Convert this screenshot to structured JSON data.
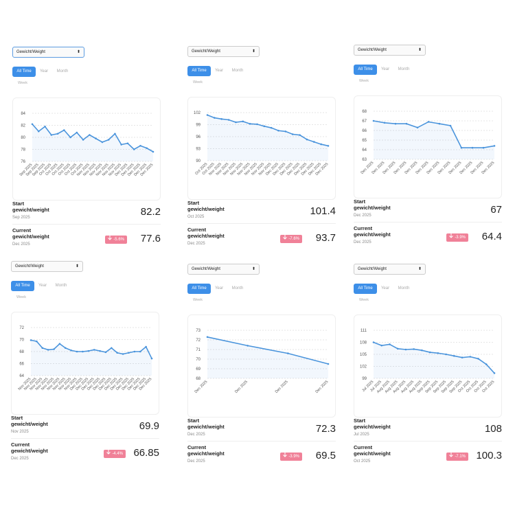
{
  "cards": [
    {
      "select": "Gewicht/Weight",
      "tabs": [
        "All Time",
        "Year",
        "Month",
        "Week"
      ],
      "chart": {
        "type": "line",
        "categories": [
          "Sep 2025",
          "Sep 2025",
          "Sep 2025",
          "Oct 2025",
          "Oct 2025",
          "Oct 2025",
          "Oct 2025",
          "Oct 2025",
          "Oct 2025",
          "Nov 2025",
          "Nov 2025",
          "Nov 2025",
          "Nov 2025",
          "Nov 2025",
          "Nov 2025",
          "Dec 2025",
          "Dec 2025",
          "Dec 2025",
          "Dec 2025",
          "Dec 2025"
        ],
        "values": [
          82.2,
          81.0,
          81.8,
          80.4,
          80.6,
          81.2,
          80.0,
          80.8,
          79.6,
          80.4,
          79.8,
          79.2,
          79.6,
          80.6,
          78.8,
          79.0,
          78.0,
          78.6,
          78.2,
          77.6
        ],
        "color": "#4a94dc",
        "ylim": [
          76,
          84
        ],
        "yticks": [
          76,
          78,
          80,
          82,
          84
        ],
        "grid": true
      },
      "start": {
        "label": "Start",
        "metric": "gewicht/weight",
        "date": "Sep 2025",
        "value": "82.2"
      },
      "current": {
        "label": "Current",
        "metric": "gewicht/weight",
        "date": "Dec 2025",
        "change": "-5.6%",
        "value": "77.6"
      }
    },
    {
      "select": "Gewicht/Weight",
      "tabs": [
        "All Time",
        "Year",
        "Month",
        "Week"
      ],
      "chart": {
        "type": "line",
        "categories": [
          "Oct 2025",
          "Oct 2025",
          "Nov 2025",
          "Nov 2025",
          "Nov 2025",
          "Nov 2025",
          "Nov 2025",
          "Nov 2025",
          "Nov 2025",
          "Nov 2025",
          "Dec 2025",
          "Dec 2025",
          "Dec 2025",
          "Dec 2025",
          "Dec 2025",
          "Dec 2025",
          "Dec 2025",
          "Dec 2025"
        ],
        "values": [
          101.4,
          100.7,
          100.4,
          100.2,
          99.6,
          99.8,
          99.2,
          99.1,
          98.6,
          98.2,
          97.5,
          97.3,
          96.6,
          96.4,
          95.3,
          94.7,
          94.1,
          93.7
        ],
        "color": "#4a94dc",
        "ylim": [
          90,
          102
        ],
        "yticks": [
          90,
          93,
          96,
          99,
          102
        ],
        "grid": true
      },
      "start": {
        "label": "Start",
        "metric": "gewicht/weight",
        "date": "Oct 2025",
        "value": "101.4"
      },
      "current": {
        "label": "Current",
        "metric": "gewicht/weight",
        "date": "Dec 2025",
        "change": "-7.6%",
        "value": "93.7"
      }
    },
    {
      "select": "Gewicht/Weight",
      "tabs": [
        "All Time",
        "Year",
        "Month",
        "Week"
      ],
      "chart": {
        "type": "line",
        "categories": [
          "Dec 2025",
          "Dec 2025",
          "Dec 2025",
          "Dec 2025",
          "Dec 2025",
          "Dec 2025",
          "Dec 2025",
          "Dec 2025",
          "Dec 2025",
          "Dec 2025",
          "Dec 2025",
          "Dec 2025"
        ],
        "values": [
          67,
          66.8,
          66.7,
          66.7,
          66.3,
          66.9,
          66.7,
          66.5,
          64.2,
          64.2,
          64.2,
          64.4
        ],
        "color": "#4a94dc",
        "ylim": [
          63,
          68
        ],
        "yticks": [
          63,
          64,
          65,
          66,
          67,
          68
        ],
        "grid": true
      },
      "start": {
        "label": "Start",
        "metric": "gewicht/weight",
        "date": "Dec 2025",
        "value": "67"
      },
      "current": {
        "label": "Current",
        "metric": "gewicht/weight",
        "date": "Dec 2025",
        "change": "-3.9%",
        "value": "64.4"
      }
    },
    {
      "select": "Gewicht/Weight",
      "tabs": [
        "All Time",
        "Year",
        "Month",
        "Week"
      ],
      "chart": {
        "type": "line",
        "categories": [
          "Nov 2025",
          "Nov 2025",
          "Nov 2025",
          "Nov 2025",
          "Nov 2025",
          "Nov 2025",
          "Nov 2025",
          "Nov 2025",
          "Nov 2025",
          "Dec 2025",
          "Dec 2025",
          "Dec 2025",
          "Dec 2025",
          "Dec 2025",
          "Dec 2025",
          "Dec 2025",
          "Dec 2025",
          "Dec 2025",
          "Dec 2025",
          "Dec 2025",
          "Dec 2025",
          "Dec 2025"
        ],
        "values": [
          69.9,
          69.7,
          68.6,
          68.3,
          68.4,
          69.3,
          68.6,
          68.2,
          68.0,
          68.0,
          68.1,
          68.3,
          68.1,
          67.9,
          68.6,
          67.8,
          67.6,
          67.8,
          68.0,
          68.0,
          68.8,
          66.85
        ],
        "color": "#4a94dc",
        "ylim": [
          64,
          72
        ],
        "yticks": [
          64,
          66,
          68,
          70,
          72
        ],
        "grid": true
      },
      "start": {
        "label": "Start",
        "metric": "gewicht/weight",
        "date": "Nov 2025",
        "value": "69.9"
      },
      "current": {
        "label": "Current",
        "metric": "gewicht/weight",
        "date": "Dec 2025",
        "change": "-4.4%",
        "value": "66.85"
      }
    },
    {
      "select": "Gewicht/Weight",
      "tabs": [
        "All Time",
        "Year",
        "Month",
        "Week"
      ],
      "chart": {
        "type": "line",
        "categories": [
          "Dec 2025",
          "Dec 2025",
          "Dec 2025",
          "Dec 2025"
        ],
        "values": [
          72.3,
          71.4,
          70.6,
          69.5
        ],
        "color": "#4a94dc",
        "ylim": [
          68,
          73
        ],
        "yticks": [
          68,
          69,
          70,
          71,
          72,
          73
        ],
        "grid": true
      },
      "start": {
        "label": "Start",
        "metric": "gewicht/weight",
        "date": "Dec 2025",
        "value": "72.3"
      },
      "current": {
        "label": "Current",
        "metric": "gewicht/weight",
        "date": "Dec 2025",
        "change": "-3.9%",
        "value": "69.5"
      }
    },
    {
      "select": "Gewicht/Weight",
      "tabs": [
        "All Time",
        "Year",
        "Month",
        "Week"
      ],
      "chart": {
        "type": "line",
        "categories": [
          "Jul 2025",
          "Jul 2025",
          "Aug 2025",
          "Aug 2025",
          "Aug 2025",
          "Aug 2025",
          "Aug 2025",
          "Sep 2025",
          "Sep 2025",
          "Sep 2025",
          "Sep 2025",
          "Sep 2025",
          "Oct 2025",
          "Oct 2025",
          "Oct 2025",
          "Oct 2025"
        ],
        "values": [
          108,
          107.2,
          107.5,
          106.4,
          106.2,
          106.3,
          106.0,
          105.5,
          105.3,
          105.0,
          104.6,
          104.2,
          104.4,
          103.9,
          102.5,
          100.3
        ],
        "color": "#4a94dc",
        "ylim": [
          99,
          111
        ],
        "yticks": [
          99,
          102,
          105,
          108,
          111
        ],
        "grid": true
      },
      "start": {
        "label": "Start",
        "metric": "gewicht/weight",
        "date": "Jul 2025",
        "value": "108"
      },
      "current": {
        "label": "Current",
        "metric": "gewicht/weight",
        "date": "Oct 2025",
        "change": "-7.1%",
        "value": "100.3"
      }
    }
  ]
}
